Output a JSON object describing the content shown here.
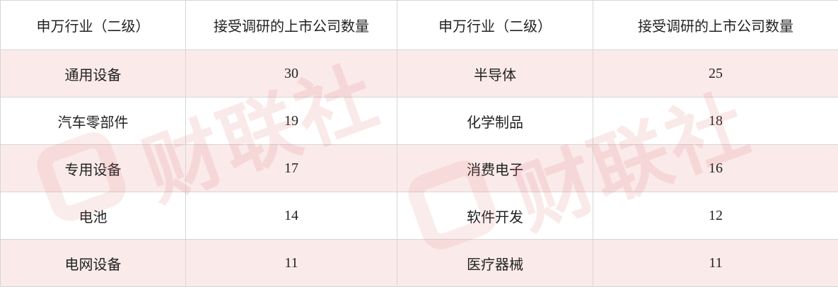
{
  "table": {
    "header": [
      "申万行业（二级）",
      "接受调研的上市公司数量",
      "申万行业（二级）",
      "接受调研的上市公司数量"
    ],
    "rows": [
      [
        "通用设备",
        30,
        "半导体",
        25
      ],
      [
        "汽车零部件",
        19,
        "化学制品",
        18
      ],
      [
        "专用设备",
        17,
        "消费电子",
        16
      ],
      [
        "电池",
        14,
        "软件开发",
        12
      ],
      [
        "电网设备",
        11,
        "医疗器械",
        11
      ]
    ]
  },
  "watermark": "财联社"
}
